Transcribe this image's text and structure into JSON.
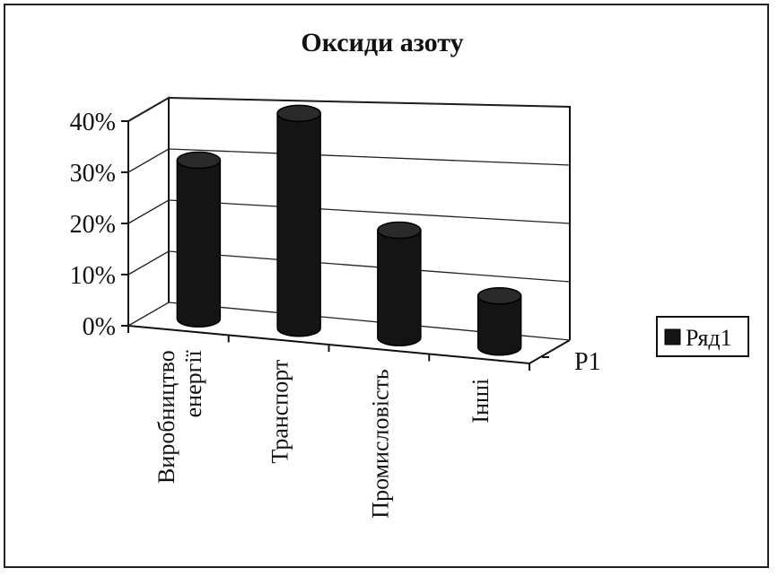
{
  "chart_data": {
    "type": "bar",
    "style": "3d-cylinder",
    "title": "Оксиди азоту",
    "categories": [
      "Виробництво енергії",
      "Транспорт",
      "Промисловість",
      "Інші"
    ],
    "category_lines": [
      [
        "Виробництво",
        "енергії"
      ],
      [
        "Транспорт"
      ],
      [
        "Промисловість"
      ],
      [
        "Інші"
      ]
    ],
    "series": [
      {
        "name": "Ряд1",
        "values": [
          0.31,
          0.42,
          0.21,
          0.1
        ]
      }
    ],
    "ylim": [
      0,
      0.4
    ],
    "yticks": [
      "0%",
      "10%",
      "20%",
      "30%",
      "40%"
    ],
    "depth_label": "Р1",
    "legend": {
      "position": "right",
      "label": "Ряд1"
    },
    "grid": true,
    "colors": {
      "bar": "#141414",
      "frame": "#222222"
    }
  }
}
